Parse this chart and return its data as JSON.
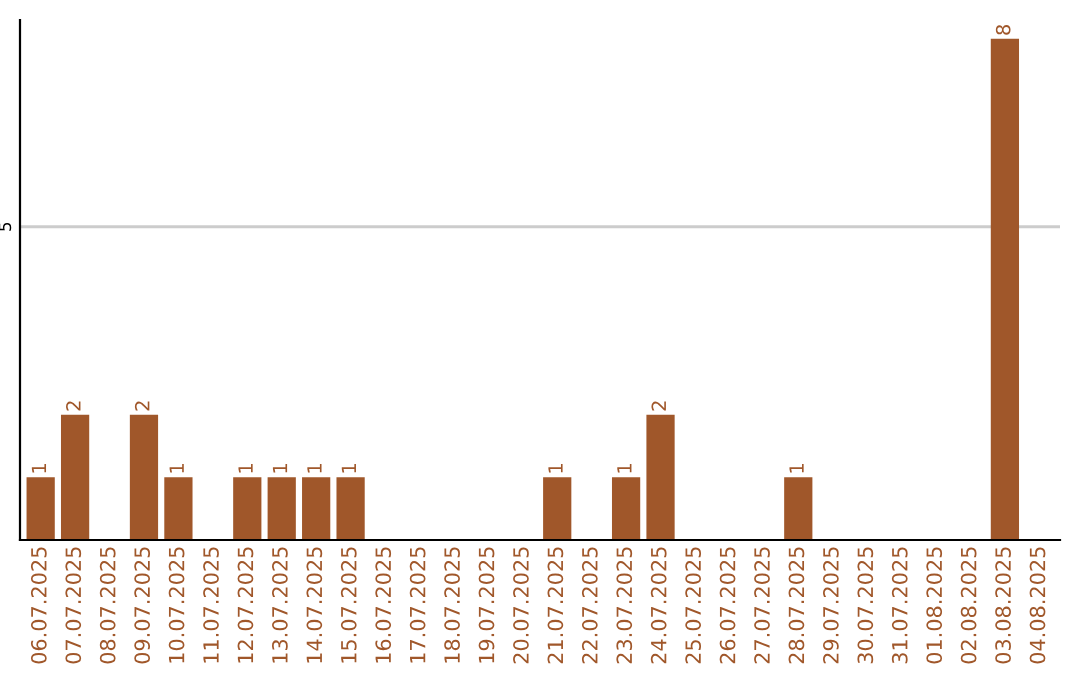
{
  "chart_data": {
    "type": "bar",
    "categories": [
      "06.07.2025",
      "07.07.2025",
      "08.07.2025",
      "09.07.2025",
      "10.07.2025",
      "11.07.2025",
      "12.07.2025",
      "13.07.2025",
      "14.07.2025",
      "15.07.2025",
      "16.07.2025",
      "17.07.2025",
      "18.07.2025",
      "19.07.2025",
      "20.07.2025",
      "21.07.2025",
      "22.07.2025",
      "23.07.2025",
      "24.07.2025",
      "25.07.2025",
      "26.07.2025",
      "27.07.2025",
      "28.07.2025",
      "29.07.2025",
      "30.07.2025",
      "31.07.2025",
      "01.08.2025",
      "02.08.2025",
      "03.08.2025",
      "04.08.2025"
    ],
    "values": [
      1,
      2,
      0,
      2,
      1,
      0,
      1,
      1,
      1,
      1,
      0,
      0,
      0,
      0,
      0,
      1,
      0,
      1,
      2,
      0,
      0,
      0,
      1,
      0,
      0,
      0,
      0,
      0,
      8,
      0
    ],
    "value_labels": [
      "1",
      "2",
      null,
      "2",
      "1",
      null,
      "1",
      "1",
      "1",
      "1",
      null,
      null,
      null,
      null,
      null,
      "1",
      null,
      "1",
      "2",
      null,
      null,
      null,
      "1",
      null,
      null,
      null,
      null,
      null,
      "8",
      null
    ],
    "color": "#a0572a",
    "ylim": [
      0,
      8.3
    ],
    "yticks": [
      5
    ],
    "grid": "y"
  }
}
